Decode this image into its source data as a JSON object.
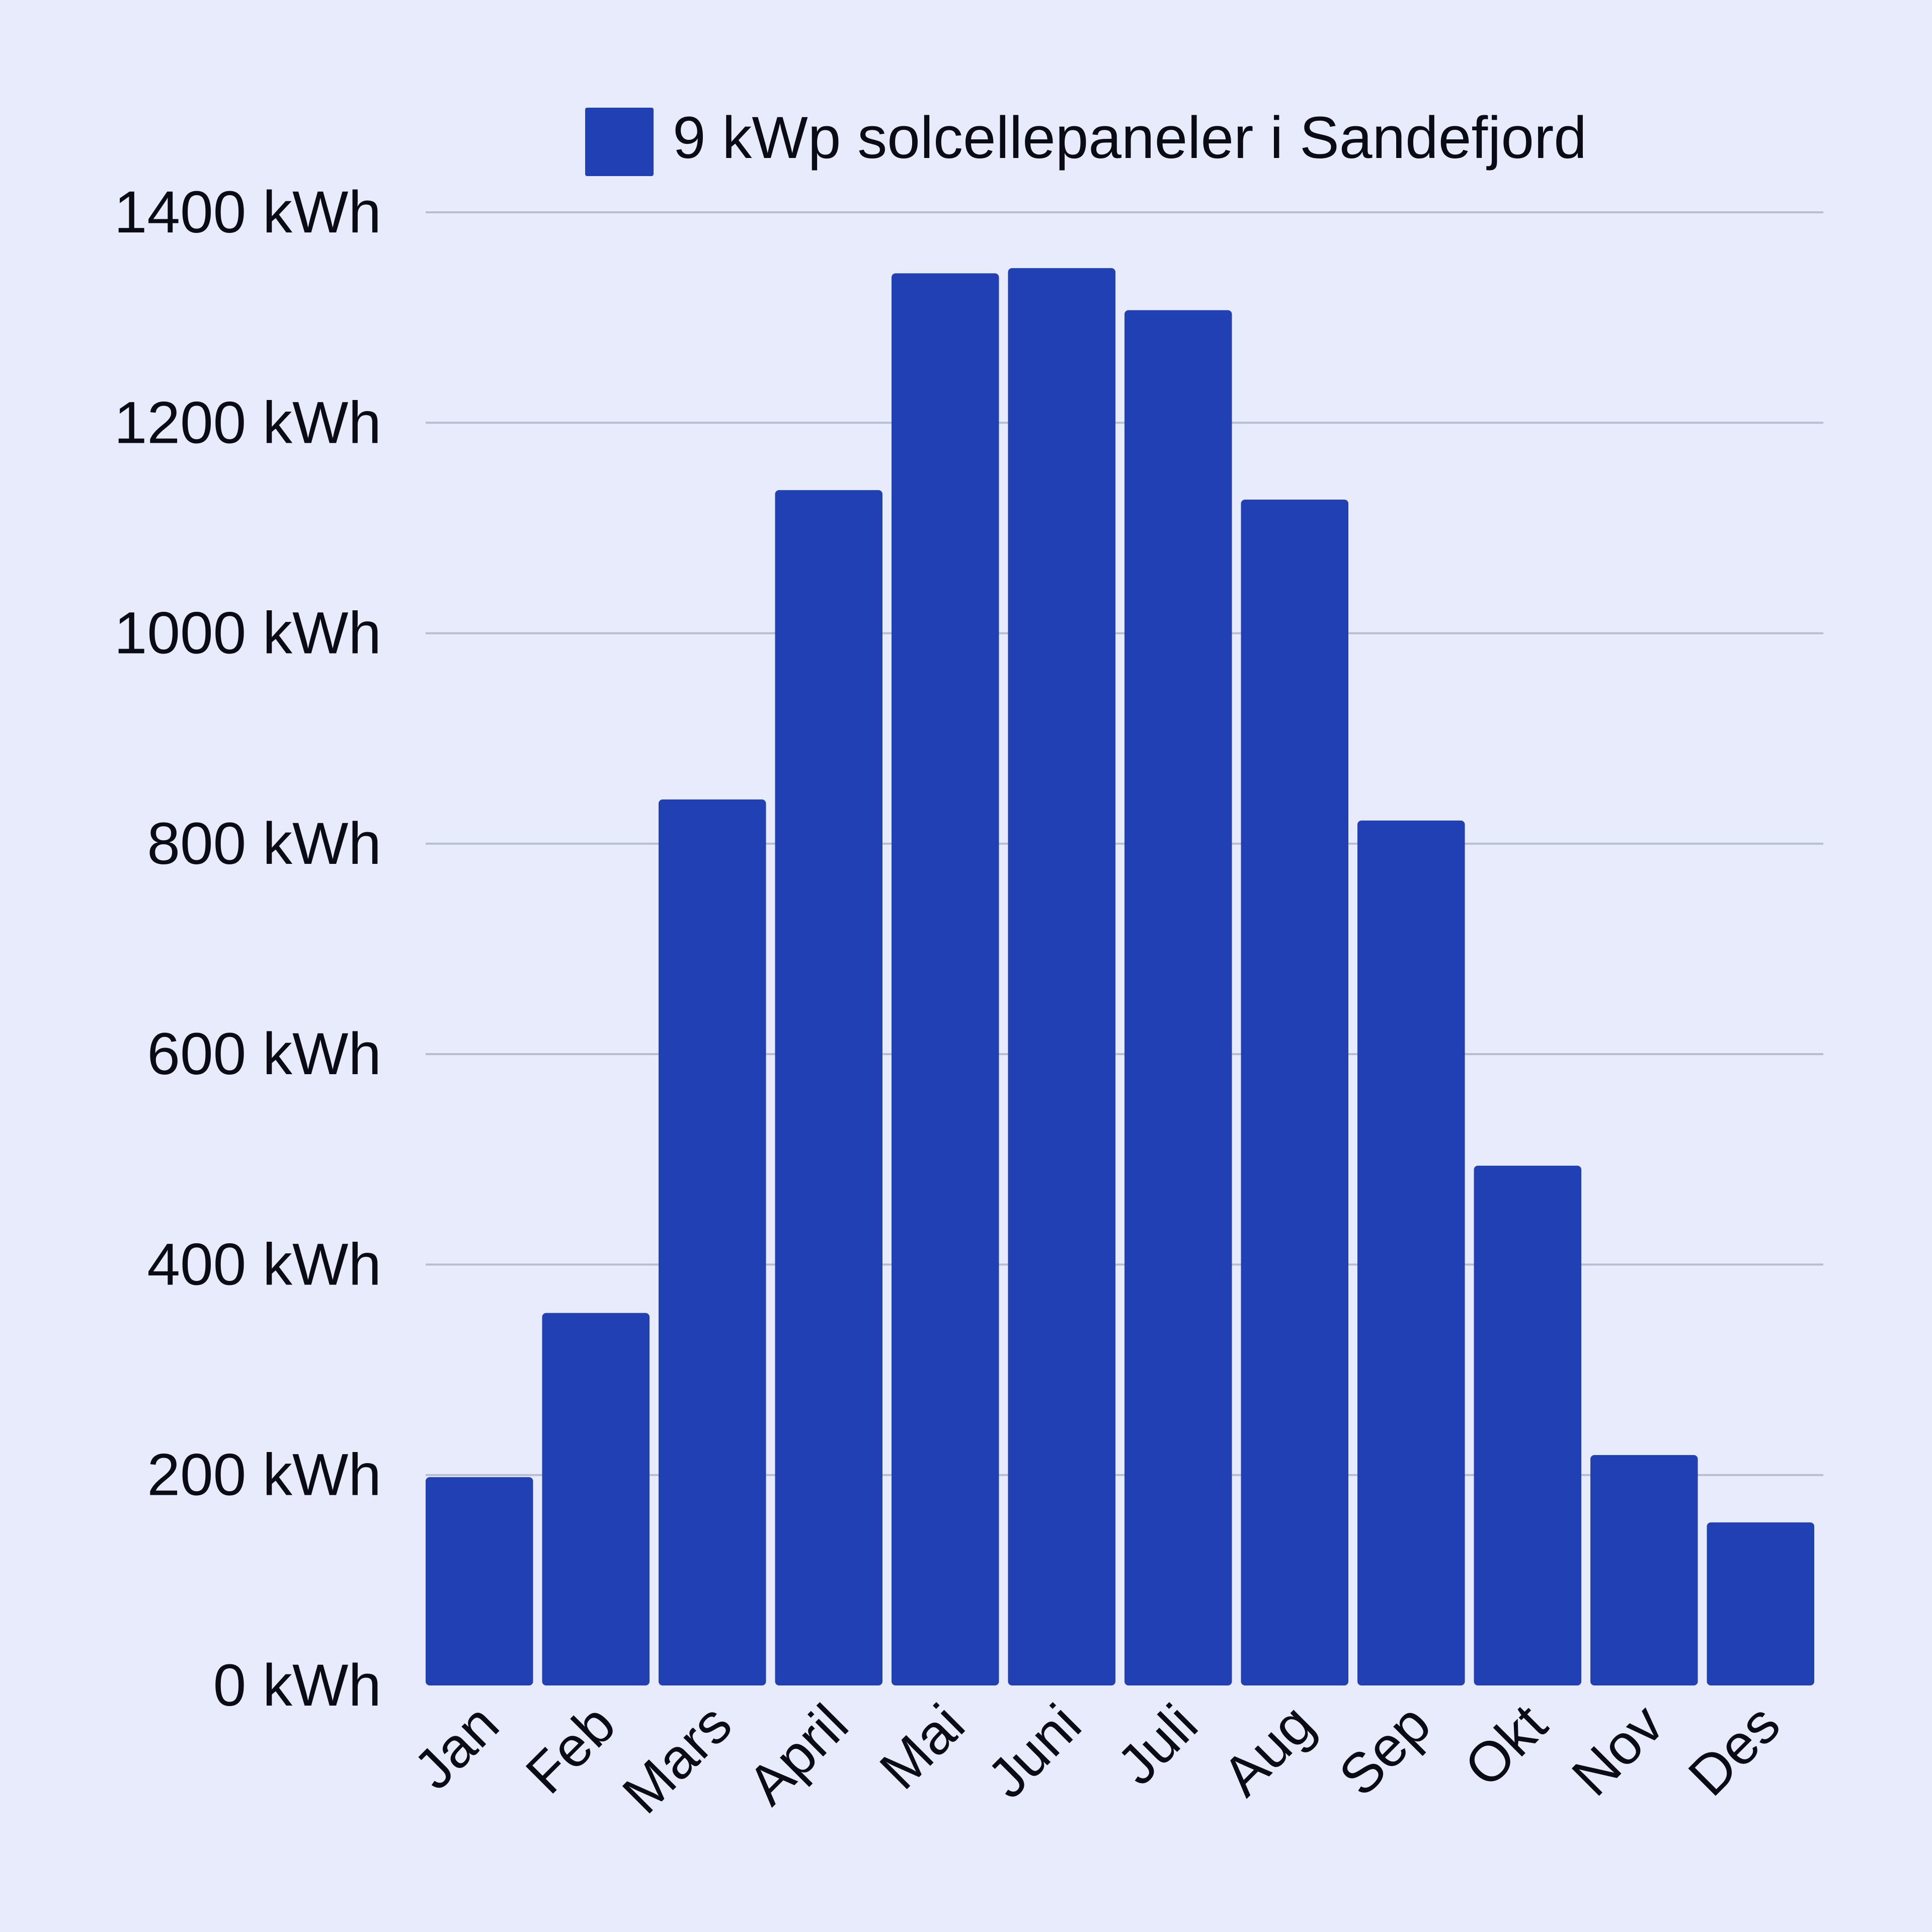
{
  "chart_data": {
    "type": "bar",
    "categories": [
      "Jan",
      "Feb",
      "Mars",
      "April",
      "Mai",
      "Juni",
      "Juli",
      "Aug",
      "Sep",
      "Okt",
      "Nov",
      "Des"
    ],
    "series": [
      {
        "name": "9 kWp solcellepaneler i Sandefjord",
        "values": [
          198,
          354,
          842,
          1136,
          1342,
          1347,
          1307,
          1127,
          822,
          494,
          219,
          155
        ]
      }
    ],
    "y_ticks": [
      "0 kWh",
      "200 kWh",
      "400 kWh",
      "600 kWh",
      "800 kWh",
      "1000 kWh",
      "1200 kWh",
      "1400 kWh"
    ],
    "ylim": [
      0,
      1400
    ],
    "grid": true,
    "legend_position": "top",
    "bar_color": "#2040b4",
    "background_color": "#e7ebfc",
    "title": "",
    "xlabel": "",
    "ylabel": ""
  }
}
